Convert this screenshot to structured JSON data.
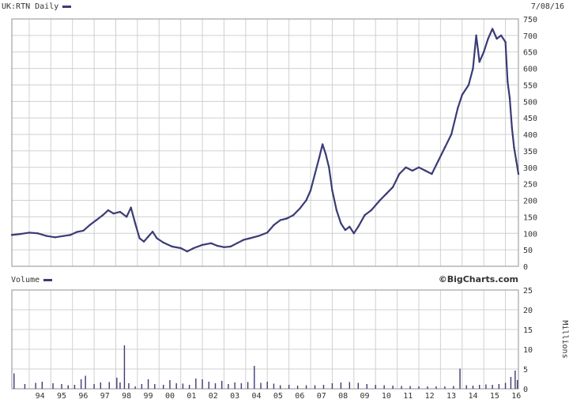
{
  "header": {
    "ticker_label": "UK:RTN Daily",
    "date_label": "7/08/16"
  },
  "volume_panel": {
    "label": "Volume",
    "brand": "©BigCharts.com"
  },
  "colors": {
    "series": "#3b3b75",
    "grid": "#d0d0d0",
    "border": "#909090"
  },
  "chart_data": [
    {
      "type": "line",
      "title": "UK:RTN Daily",
      "xlabel": "",
      "ylabel": "",
      "grid": true,
      "ylim": [
        0,
        750
      ],
      "xlim": [
        1993.2,
        2016.6
      ],
      "y_ticks": [
        0,
        50,
        100,
        150,
        200,
        250,
        300,
        350,
        400,
        450,
        500,
        550,
        600,
        650,
        700,
        750
      ],
      "x_tick_labels": [
        {
          "x": 1994,
          "label": "94"
        },
        {
          "x": 1995,
          "label": "95"
        },
        {
          "x": 1996,
          "label": "96"
        },
        {
          "x": 1997,
          "label": "97"
        },
        {
          "x": 1998,
          "label": "98"
        },
        {
          "x": 1999,
          "label": "99"
        },
        {
          "x": 2000,
          "label": "00"
        },
        {
          "x": 2001,
          "label": "01"
        },
        {
          "x": 2002,
          "label": "02"
        },
        {
          "x": 2003,
          "label": "03"
        },
        {
          "x": 2004,
          "label": "04"
        },
        {
          "x": 2005,
          "label": "05"
        },
        {
          "x": 2006,
          "label": "06"
        },
        {
          "x": 2007,
          "label": "07"
        },
        {
          "x": 2008,
          "label": "08"
        },
        {
          "x": 2009,
          "label": "09"
        },
        {
          "x": 2010,
          "label": "10"
        },
        {
          "x": 2011,
          "label": "11"
        },
        {
          "x": 2012,
          "label": "12"
        },
        {
          "x": 2013,
          "label": "13"
        },
        {
          "x": 2014,
          "label": "14"
        },
        {
          "x": 2015,
          "label": "15"
        },
        {
          "x": 2016,
          "label": "16"
        }
      ],
      "series": [
        {
          "values": [
            [
              1993.2,
              95
            ],
            [
              1993.6,
              98
            ],
            [
              1994.0,
              102
            ],
            [
              1994.4,
              100
            ],
            [
              1994.8,
              92
            ],
            [
              1995.2,
              88
            ],
            [
              1995.6,
              92
            ],
            [
              1995.9,
              95
            ],
            [
              1996.2,
              104
            ],
            [
              1996.5,
              108
            ],
            [
              1996.8,
              125
            ],
            [
              1997.1,
              140
            ],
            [
              1997.4,
              155
            ],
            [
              1997.65,
              170
            ],
            [
              1997.9,
              160
            ],
            [
              1998.2,
              165
            ],
            [
              1998.5,
              150
            ],
            [
              1998.7,
              178
            ],
            [
              1998.9,
              130
            ],
            [
              1999.1,
              85
            ],
            [
              1999.3,
              75
            ],
            [
              1999.5,
              90
            ],
            [
              1999.7,
              105
            ],
            [
              1999.9,
              85
            ],
            [
              2000.2,
              72
            ],
            [
              2000.6,
              60
            ],
            [
              2001.0,
              55
            ],
            [
              2001.3,
              45
            ],
            [
              2001.6,
              55
            ],
            [
              2002.0,
              65
            ],
            [
              2002.4,
              70
            ],
            [
              2002.7,
              62
            ],
            [
              2003.0,
              58
            ],
            [
              2003.3,
              60
            ],
            [
              2003.6,
              70
            ],
            [
              2003.9,
              80
            ],
            [
              2004.2,
              85
            ],
            [
              2004.6,
              92
            ],
            [
              2005.0,
              102
            ],
            [
              2005.3,
              125
            ],
            [
              2005.6,
              140
            ],
            [
              2005.9,
              145
            ],
            [
              2006.2,
              155
            ],
            [
              2006.5,
              175
            ],
            [
              2006.8,
              200
            ],
            [
              2007.0,
              230
            ],
            [
              2007.2,
              280
            ],
            [
              2007.4,
              330
            ],
            [
              2007.55,
              370
            ],
            [
              2007.7,
              340
            ],
            [
              2007.85,
              300
            ],
            [
              2008.0,
              230
            ],
            [
              2008.2,
              170
            ],
            [
              2008.4,
              130
            ],
            [
              2008.6,
              110
            ],
            [
              2008.8,
              120
            ],
            [
              2009.0,
              100
            ],
            [
              2009.2,
              120
            ],
            [
              2009.5,
              155
            ],
            [
              2009.8,
              170
            ],
            [
              2010.2,
              200
            ],
            [
              2010.5,
              220
            ],
            [
              2010.8,
              240
            ],
            [
              2011.1,
              280
            ],
            [
              2011.4,
              300
            ],
            [
              2011.7,
              290
            ],
            [
              2012.0,
              300
            ],
            [
              2012.3,
              290
            ],
            [
              2012.6,
              280
            ],
            [
              2012.9,
              320
            ],
            [
              2013.2,
              360
            ],
            [
              2013.5,
              400
            ],
            [
              2013.8,
              480
            ],
            [
              2014.0,
              520
            ],
            [
              2014.3,
              550
            ],
            [
              2014.5,
              600
            ],
            [
              2014.65,
              700
            ],
            [
              2014.8,
              620
            ],
            [
              2015.0,
              650
            ],
            [
              2015.2,
              690
            ],
            [
              2015.4,
              720
            ],
            [
              2015.6,
              690
            ],
            [
              2015.8,
              700
            ],
            [
              2016.0,
              680
            ],
            [
              2016.1,
              560
            ],
            [
              2016.2,
              510
            ],
            [
              2016.3,
              420
            ],
            [
              2016.4,
              360
            ],
            [
              2016.5,
              320
            ],
            [
              2016.6,
              280
            ]
          ]
        }
      ]
    },
    {
      "type": "bar",
      "title": "Volume",
      "ylabel": "Millions",
      "grid": true,
      "ylim": [
        0,
        25
      ],
      "xlim": [
        1993.2,
        2016.6
      ],
      "y_ticks": [
        0,
        5,
        10,
        15,
        20,
        25
      ],
      "series": [
        {
          "values": [
            [
              1993.3,
              3.9
            ],
            [
              1993.8,
              1.2
            ],
            [
              1994.3,
              1.5
            ],
            [
              1994.6,
              1.8
            ],
            [
              1995.1,
              1.4
            ],
            [
              1995.5,
              1.2
            ],
            [
              1995.8,
              0.9
            ],
            [
              1996.1,
              1.0
            ],
            [
              1996.4,
              2.4
            ],
            [
              1996.6,
              3.3
            ],
            [
              1997.0,
              1.2
            ],
            [
              1997.3,
              1.6
            ],
            [
              1997.7,
              1.7
            ],
            [
              1998.05,
              2.8
            ],
            [
              1998.2,
              1.6
            ],
            [
              1998.4,
              11.0
            ],
            [
              1998.6,
              1.4
            ],
            [
              1998.9,
              0.6
            ],
            [
              1999.2,
              1.2
            ],
            [
              1999.5,
              2.4
            ],
            [
              1999.8,
              1.2
            ],
            [
              2000.2,
              1.0
            ],
            [
              2000.5,
              2.2
            ],
            [
              2000.8,
              1.4
            ],
            [
              2001.1,
              1.3
            ],
            [
              2001.4,
              1.0
            ],
            [
              2001.7,
              2.6
            ],
            [
              2002.0,
              2.4
            ],
            [
              2002.3,
              1.8
            ],
            [
              2002.6,
              1.4
            ],
            [
              2002.9,
              2.0
            ],
            [
              2003.2,
              1.2
            ],
            [
              2003.5,
              1.6
            ],
            [
              2003.8,
              1.4
            ],
            [
              2004.1,
              1.7
            ],
            [
              2004.4,
              5.8
            ],
            [
              2004.7,
              1.5
            ],
            [
              2005.0,
              1.8
            ],
            [
              2005.3,
              1.3
            ],
            [
              2005.6,
              0.9
            ],
            [
              2006.0,
              1.0
            ],
            [
              2006.4,
              0.8
            ],
            [
              2006.8,
              0.9
            ],
            [
              2007.2,
              0.9
            ],
            [
              2007.6,
              1.0
            ],
            [
              2008.0,
              1.4
            ],
            [
              2008.4,
              1.6
            ],
            [
              2008.8,
              1.7
            ],
            [
              2009.2,
              1.5
            ],
            [
              2009.6,
              1.2
            ],
            [
              2010.0,
              1.0
            ],
            [
              2010.4,
              0.9
            ],
            [
              2010.8,
              0.8
            ],
            [
              2011.2,
              0.7
            ],
            [
              2011.6,
              0.7
            ],
            [
              2012.0,
              0.6
            ],
            [
              2012.4,
              0.6
            ],
            [
              2012.8,
              0.6
            ],
            [
              2013.2,
              0.6
            ],
            [
              2013.6,
              0.7
            ],
            [
              2013.9,
              5.1
            ],
            [
              2014.2,
              0.9
            ],
            [
              2014.5,
              0.8
            ],
            [
              2014.8,
              1.0
            ],
            [
              2015.1,
              1.1
            ],
            [
              2015.4,
              1.0
            ],
            [
              2015.7,
              1.2
            ],
            [
              2016.0,
              1.5
            ],
            [
              2016.25,
              3.0
            ],
            [
              2016.45,
              4.6
            ],
            [
              2016.55,
              2.2
            ]
          ]
        }
      ]
    }
  ]
}
